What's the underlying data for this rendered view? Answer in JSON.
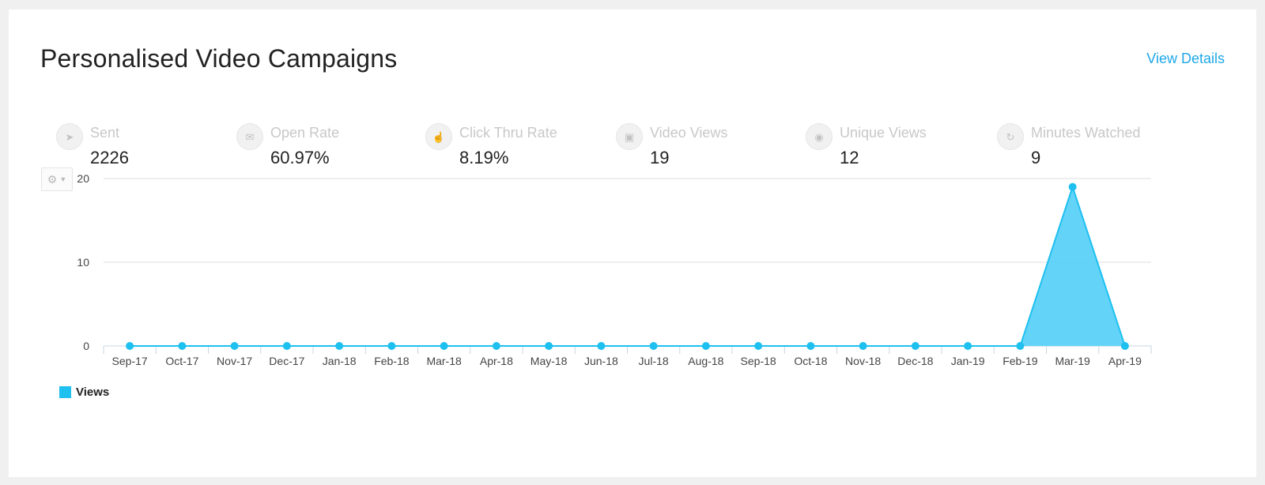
{
  "header": {
    "title": "Personalised Video Campaigns",
    "view_details": "View Details"
  },
  "stats": [
    {
      "label": "Sent",
      "value": "2226",
      "icon": "send-icon"
    },
    {
      "label": "Open Rate",
      "value": "60.97%",
      "icon": "envelope-open-icon"
    },
    {
      "label": "Click Thru Rate",
      "value": "8.19%",
      "icon": "hand-pointer-icon"
    },
    {
      "label": "Video Views",
      "value": "19",
      "icon": "video-icon"
    },
    {
      "label": "Unique Views",
      "value": "12",
      "icon": "eye-icon"
    },
    {
      "label": "Minutes Watched",
      "value": "9",
      "icon": "refresh-icon"
    }
  ],
  "colors": {
    "accent": "#1ea7e8",
    "series": "#1ec0f0",
    "area": "#5bd1f7"
  },
  "chart_data": {
    "type": "area",
    "categories": [
      "Sep-17",
      "Oct-17",
      "Nov-17",
      "Dec-17",
      "Jan-18",
      "Feb-18",
      "Mar-18",
      "Apr-18",
      "May-18",
      "Jun-18",
      "Jul-18",
      "Aug-18",
      "Sep-18",
      "Oct-18",
      "Nov-18",
      "Dec-18",
      "Jan-19",
      "Feb-19",
      "Mar-19",
      "Apr-19"
    ],
    "series": [
      {
        "name": "Views",
        "values": [
          0,
          0,
          0,
          0,
          0,
          0,
          0,
          0,
          0,
          0,
          0,
          0,
          0,
          0,
          0,
          0,
          0,
          0,
          19,
          0
        ]
      }
    ],
    "yticks": [
      0,
      10,
      20
    ],
    "ylim": [
      0,
      20
    ],
    "title": "",
    "xlabel": "",
    "ylabel": "",
    "grid": true,
    "legend": "bottom-left"
  }
}
